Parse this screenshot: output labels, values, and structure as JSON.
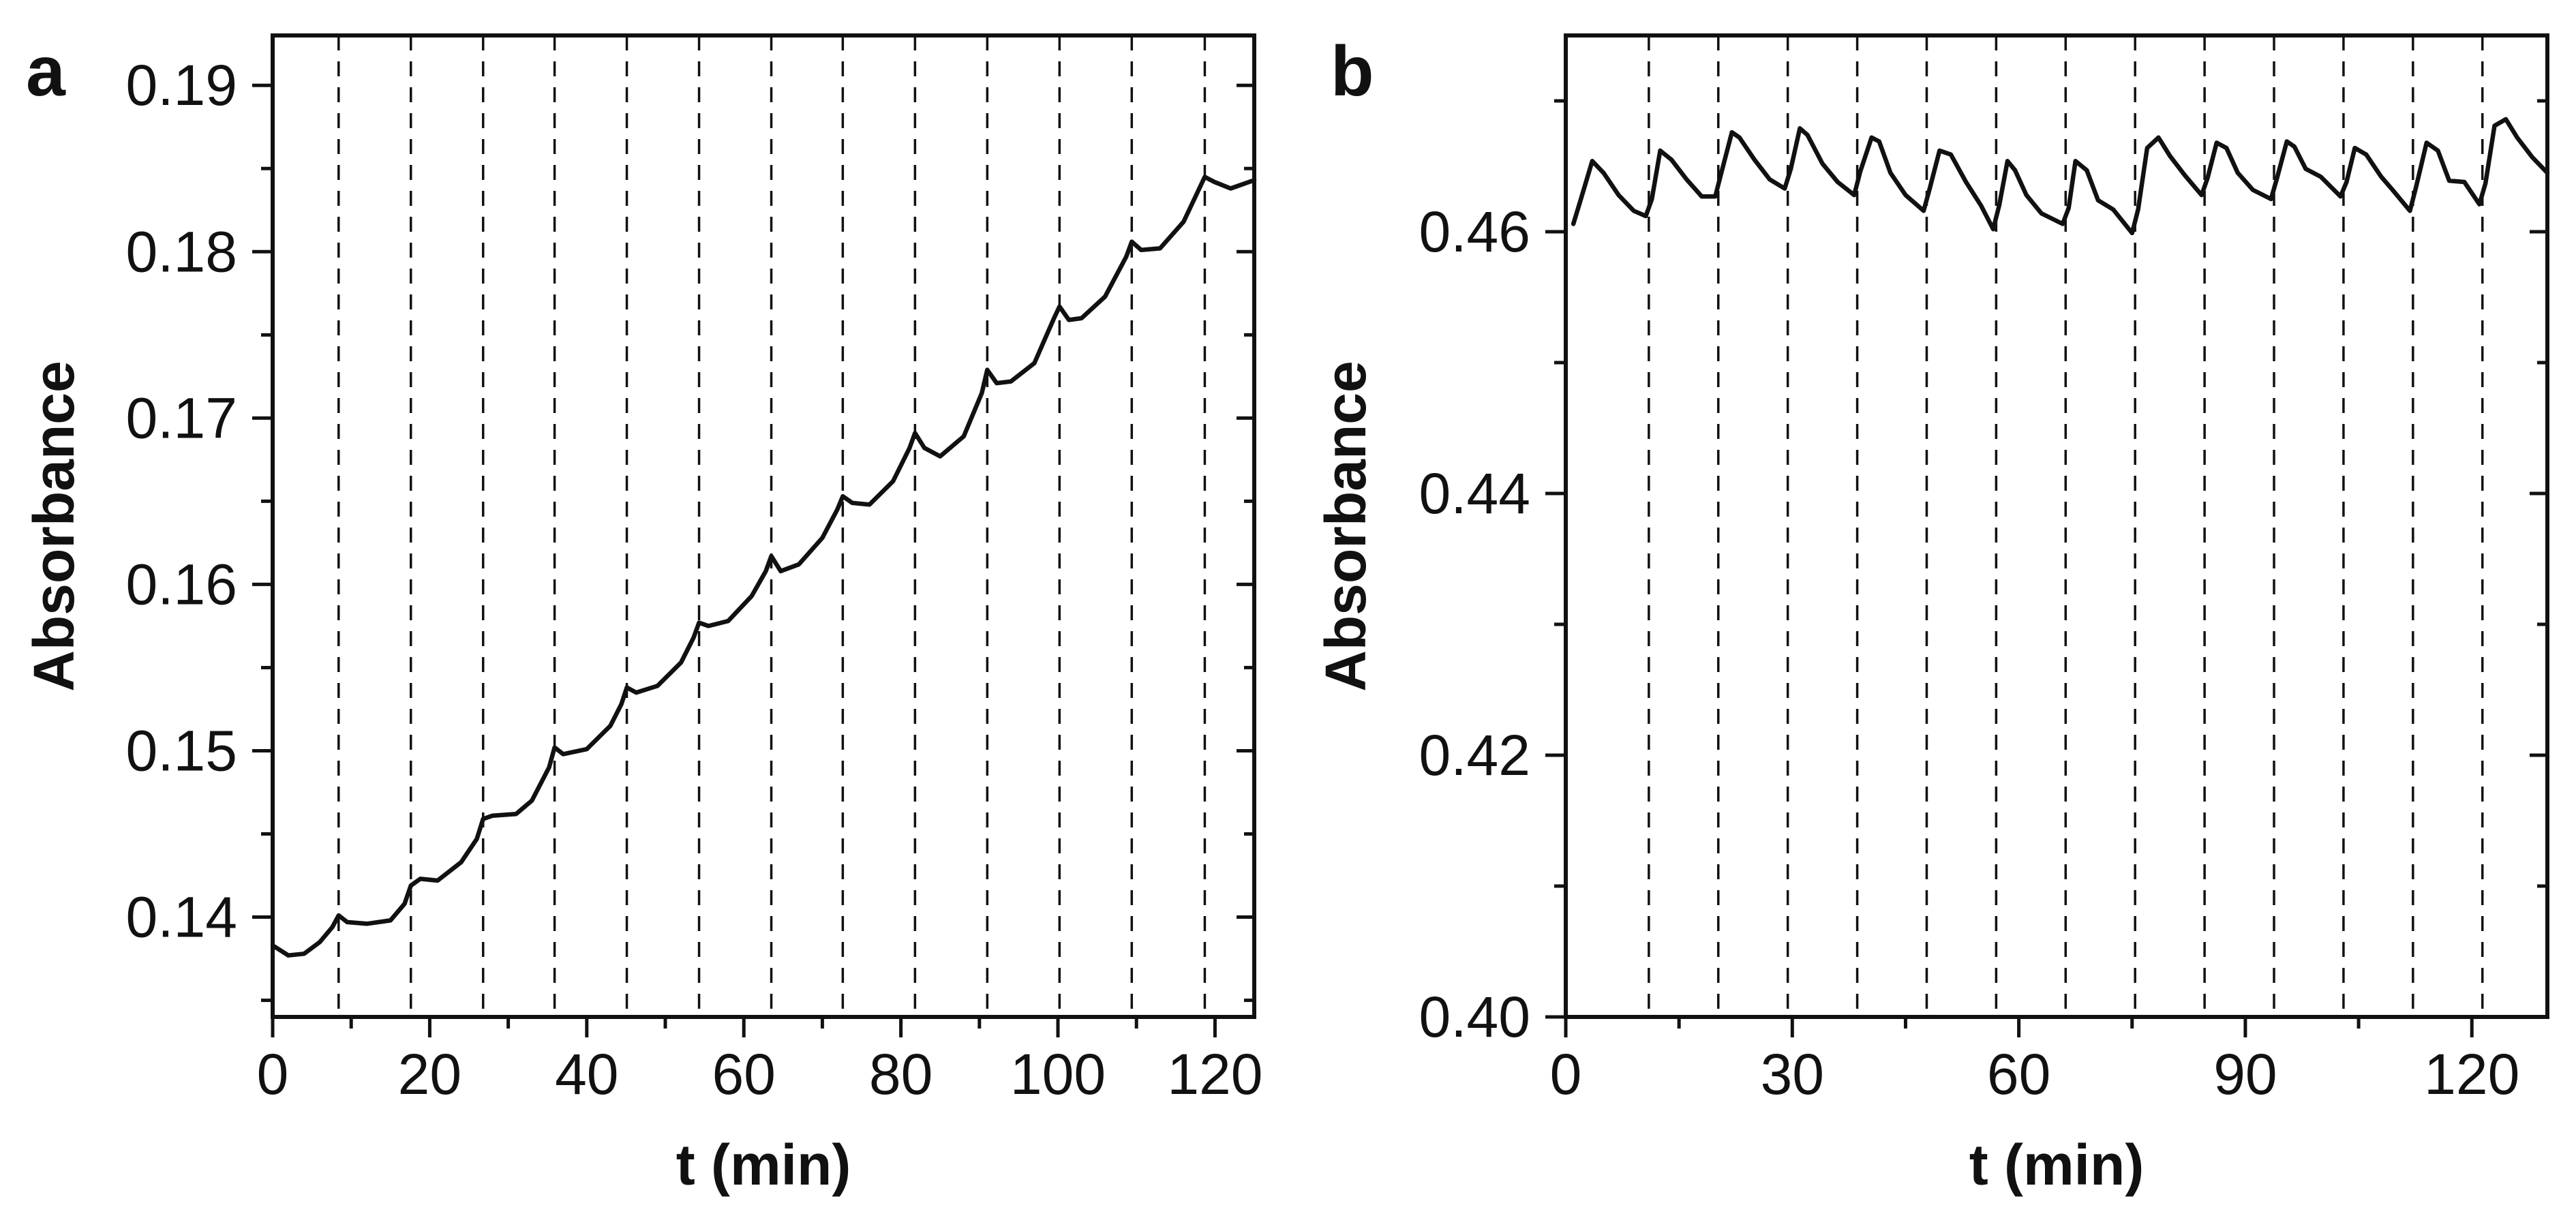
{
  "colors": {
    "line": "#111111",
    "background": "#ffffff"
  },
  "chart_data": [
    {
      "panel": "a",
      "type": "line",
      "title": "",
      "xlabel": "t (min)",
      "ylabel": "Absorbance",
      "xlim": [
        0,
        125
      ],
      "ylim": [
        0.134,
        0.193
      ],
      "xticks": [
        0,
        20,
        40,
        60,
        80,
        100,
        120
      ],
      "xticklabels": [
        "0",
        "20",
        "40",
        "60",
        "80",
        "100",
        "120"
      ],
      "yticks": [
        0.14,
        0.15,
        0.16,
        0.17,
        0.18,
        0.19
      ],
      "yticklabels": [
        "0.14",
        "0.15",
        "0.16",
        "0.17",
        "0.18",
        "0.19"
      ],
      "ytick_minor": [
        0.135,
        0.145,
        0.155,
        0.165,
        0.175,
        0.185
      ],
      "xtick_minor": [
        10,
        30,
        50,
        70,
        90,
        110
      ],
      "vertical_dashed_lines": [
        8.4,
        17.6,
        26.8,
        35.9,
        45.1,
        54.3,
        63.5,
        72.6,
        81.8,
        91,
        100.2,
        109.4,
        118.7
      ],
      "series": [
        {
          "name": "Absorbance",
          "x": [
            0,
            2,
            4,
            6,
            7.6,
            8.4,
            9.5,
            12,
            15,
            16.8,
            17.6,
            18.8,
            21,
            24,
            26,
            26.8,
            28,
            31,
            33,
            35.2,
            35.9,
            37,
            40,
            43,
            44.4,
            45.1,
            46.3,
            49,
            52,
            53.6,
            54.3,
            55.5,
            58,
            61,
            62.8,
            63.5,
            64.7,
            67,
            70,
            71.9,
            72.6,
            73.8,
            76,
            79,
            81.1,
            81.8,
            83,
            85,
            88,
            90.3,
            91,
            92.2,
            94,
            97,
            99.5,
            100.2,
            101.4,
            103,
            106,
            108.7,
            109.4,
            110.6,
            113,
            116,
            118,
            118.7,
            119.9,
            122,
            125
          ],
          "y": [
            0.1383,
            0.1377,
            0.1378,
            0.1385,
            0.1394,
            0.1401,
            0.1397,
            0.1396,
            0.1398,
            0.1408,
            0.1419,
            0.1423,
            0.1422,
            0.1433,
            0.1447,
            0.1459,
            0.1461,
            0.1462,
            0.147,
            0.149,
            0.1502,
            0.1498,
            0.1501,
            0.1515,
            0.1528,
            0.1538,
            0.1535,
            0.1539,
            0.1553,
            0.1568,
            0.1577,
            0.1575,
            0.1578,
            0.1593,
            0.1608,
            0.1617,
            0.1608,
            0.1612,
            0.1628,
            0.1645,
            0.1653,
            0.1649,
            0.1648,
            0.1662,
            0.1682,
            0.1691,
            0.1682,
            0.1677,
            0.1689,
            0.1715,
            0.1729,
            0.1721,
            0.1722,
            0.1733,
            0.176,
            0.1767,
            0.1759,
            0.176,
            0.1773,
            0.1797,
            0.1806,
            0.1801,
            0.1802,
            0.1818,
            0.1838,
            0.1845,
            0.1842,
            0.1838,
            0.1843
          ]
        }
      ]
    },
    {
      "panel": "b",
      "type": "line",
      "title": "",
      "xlabel": "t (min)",
      "ylabel": "Absorbance",
      "xlim": [
        0,
        130
      ],
      "ylim": [
        0.4,
        0.475
      ],
      "xticks": [
        0,
        30,
        60,
        90,
        120
      ],
      "xticklabels": [
        "0",
        "30",
        "60",
        "90",
        "120"
      ],
      "yticks": [
        0.4,
        0.42,
        0.44,
        0.46
      ],
      "yticklabels": [
        "0.40",
        "0.42",
        "0.44",
        "0.46"
      ],
      "ytick_minor": [
        0.41,
        0.43,
        0.45,
        0.47
      ],
      "xtick_minor": [
        15,
        45,
        75,
        105
      ],
      "vertical_dashed_lines": [
        11,
        20.2,
        29.4,
        38.6,
        47.8,
        57,
        66.2,
        75.4,
        84.6,
        93.8,
        103,
        112.2,
        121.4
      ],
      "series": [
        {
          "name": "Absorbance",
          "x": [
            1,
            2,
            3.5,
            5,
            7,
            9,
            10.6,
            11.4,
            12.5,
            14,
            16,
            18,
            19.8,
            20.6,
            22,
            23,
            25,
            27,
            29,
            29.8,
            31,
            32,
            34,
            36,
            38.2,
            39,
            40.5,
            41.5,
            43,
            45,
            47.4,
            48.2,
            49.5,
            51,
            53,
            55,
            56.6,
            57.4,
            58.5,
            59.5,
            61,
            63,
            65.8,
            66.6,
            67.5,
            69,
            70.5,
            72.5,
            75,
            75.8,
            77,
            78.5,
            80,
            82,
            84.2,
            85,
            86.2,
            87.5,
            89,
            91,
            93.4,
            94.2,
            95.5,
            96.5,
            98,
            100,
            102.6,
            103.4,
            104.5,
            106,
            108,
            109.5,
            111.8,
            112.6,
            114,
            115.5,
            117,
            119,
            121,
            121.8,
            123,
            124.5,
            126,
            128,
            130
          ],
          "y": [
            0.4606,
            0.4625,
            0.4654,
            0.4645,
            0.4628,
            0.4616,
            0.4612,
            0.4625,
            0.4662,
            0.4655,
            0.464,
            0.4627,
            0.4627,
            0.4645,
            0.4676,
            0.4672,
            0.4655,
            0.464,
            0.4633,
            0.4648,
            0.4679,
            0.4674,
            0.4652,
            0.4638,
            0.4628,
            0.4646,
            0.4672,
            0.4669,
            0.4645,
            0.4628,
            0.4616,
            0.4633,
            0.4662,
            0.4659,
            0.4638,
            0.462,
            0.4602,
            0.462,
            0.4654,
            0.4647,
            0.4628,
            0.4614,
            0.4606,
            0.4618,
            0.4654,
            0.4647,
            0.4624,
            0.4617,
            0.4599,
            0.4617,
            0.4664,
            0.4672,
            0.4658,
            0.4643,
            0.4628,
            0.4641,
            0.4668,
            0.4664,
            0.4645,
            0.4632,
            0.4625,
            0.4641,
            0.4669,
            0.4665,
            0.4648,
            0.4642,
            0.4627,
            0.4638,
            0.4664,
            0.4659,
            0.4642,
            0.4632,
            0.4616,
            0.4634,
            0.4668,
            0.4662,
            0.4639,
            0.4638,
            0.4621,
            0.4637,
            0.4681,
            0.4686,
            0.4672,
            0.4657,
            0.4645
          ]
        }
      ]
    }
  ]
}
